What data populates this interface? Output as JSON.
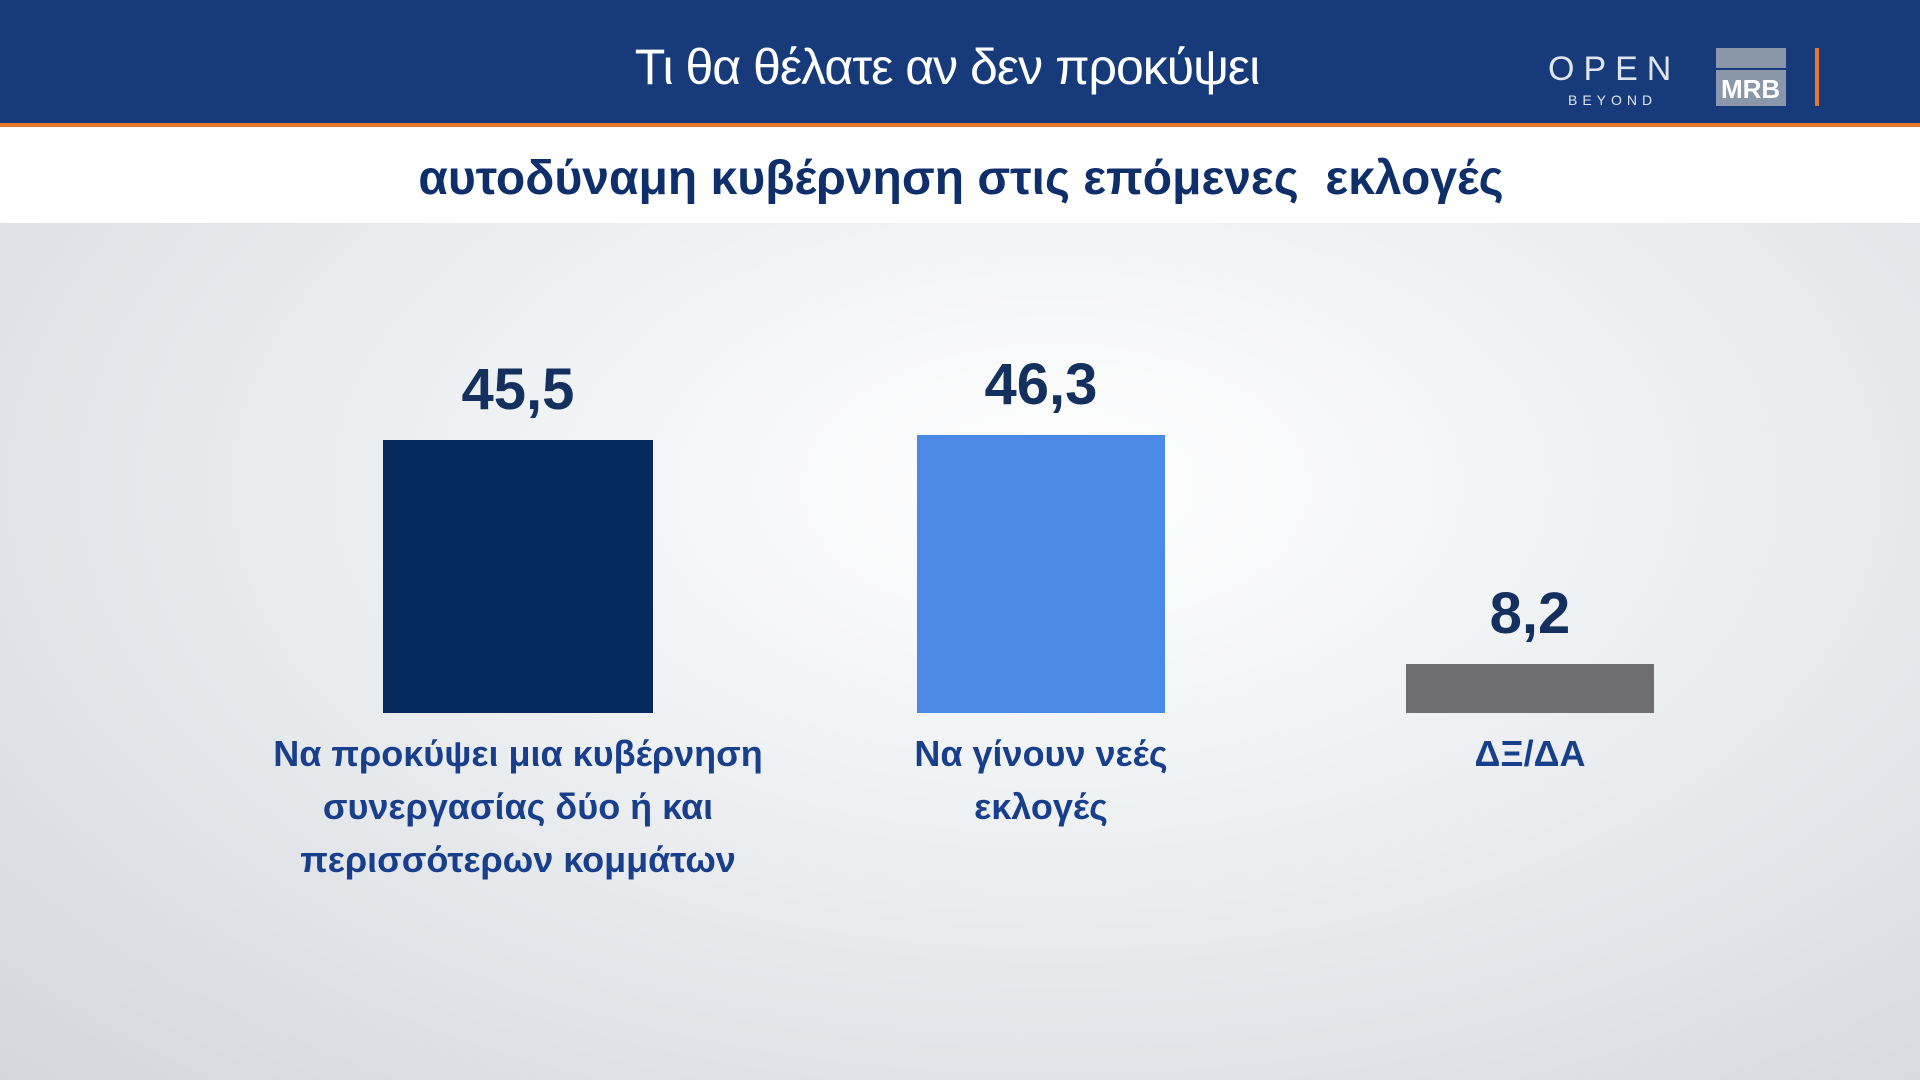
{
  "header": {
    "title": "Τι θα θέλατε αν δεν προκύψει",
    "logo_open": "OPEN",
    "logo_beyond": "BEYOND",
    "logo_mrb": "MRB"
  },
  "chart_data": {
    "type": "bar",
    "title": "αυτοδύναμη κυβέρνηση στις επόμενες  εκλογές",
    "categories": [
      "Να προκύψει μια κυβέρνηση συνεργασίας δύο ή και περισσότερων κομμάτων",
      "Να γίνουν νεές εκλογές",
      "ΔΞ/ΔΑ"
    ],
    "values": [
      45.5,
      46.3,
      8.2
    ],
    "value_labels": [
      "45,5",
      "46,3",
      "8,2"
    ],
    "colors": [
      "#062a5e",
      "#4a8ae6",
      "#6e6e70"
    ]
  }
}
